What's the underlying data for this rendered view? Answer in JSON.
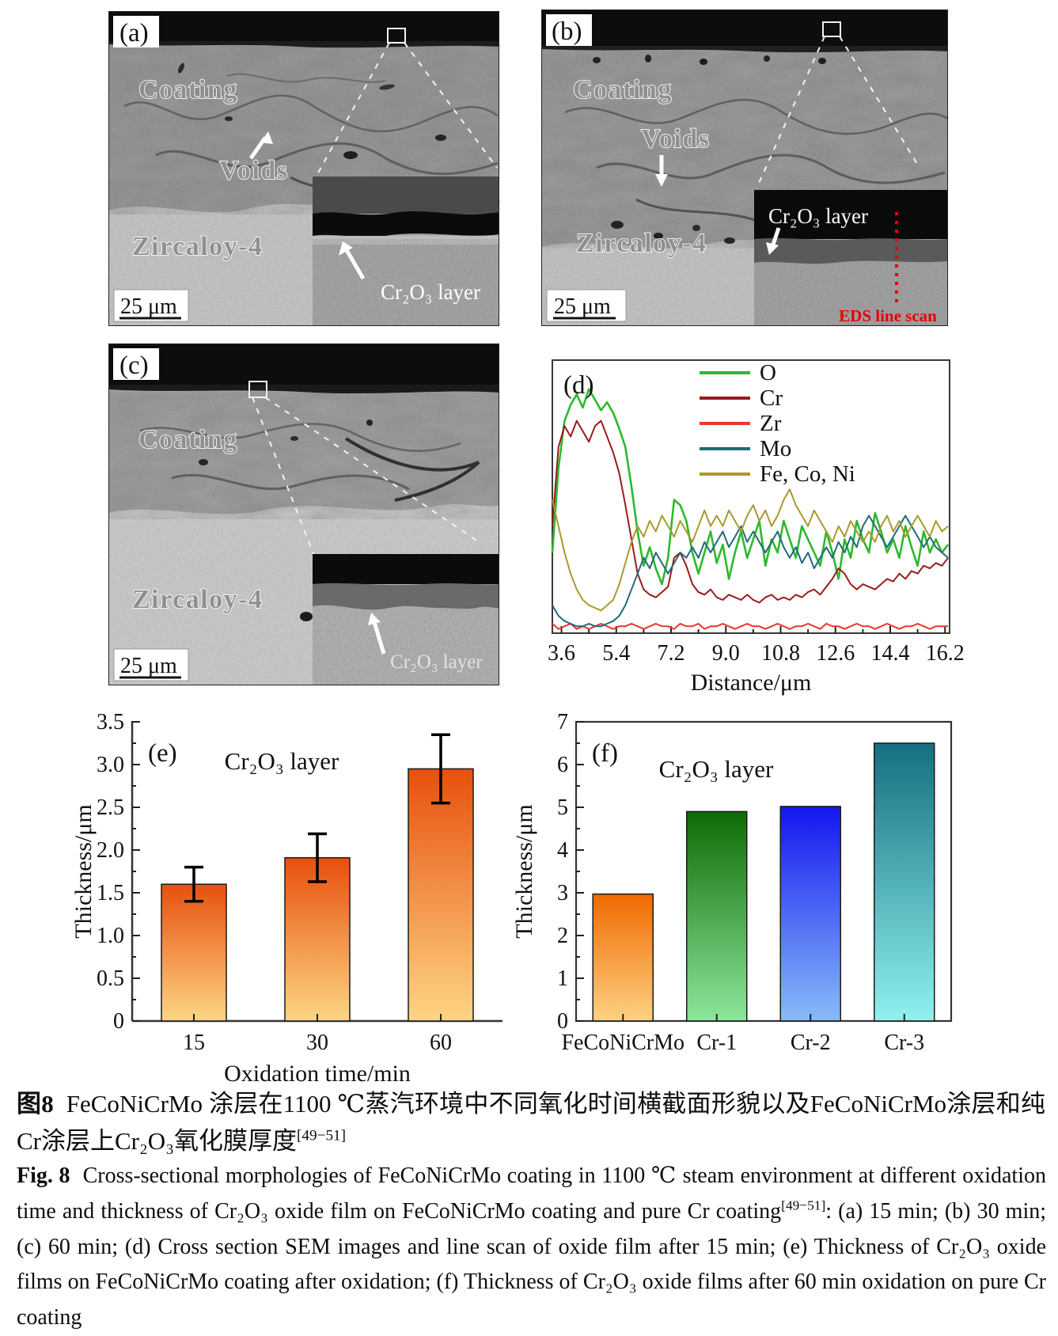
{
  "figure": {
    "panels": {
      "a": {
        "tag": "(a)",
        "coating_label": "Coating",
        "voids_label": "Voids",
        "substrate_label": "Zircaloy-4",
        "scalebar": "25 μm",
        "inset_label": "Cr₂O₃ layer"
      },
      "b": {
        "tag": "(b)",
        "coating_label": "Coating",
        "voids_label": "Voids",
        "substrate_label": "Zircaloy-4",
        "scalebar": "25 μm",
        "inset_label": "Cr₂O₃ layer",
        "eds_label": "EDS line scan"
      },
      "c": {
        "tag": "(c)",
        "coating_label": "Coating",
        "substrate_label": "Zircaloy-4",
        "scalebar": "25 μm",
        "inset_label": "Cr₂O₃ layer"
      }
    },
    "caption_zh": {
      "fig": "图8",
      "text": "FeCoNiCrMo 涂层在1100 ℃蒸汽环境中不同氧化时间横截面形貌以及FeCoNiCrMo涂层和纯Cr涂层上Cr₂O₃氧化膜厚度",
      "ref": "[49−51]"
    },
    "caption_en": {
      "fig": "Fig. 8",
      "part1": "Cross-sectional morphologies of FeCoNiCrMo coating in 1100 ℃ steam environment at different oxidation time and thickness of Cr₂O₃ oxide film on FeCoNiCrMo coating and pure Cr coating",
      "ref": "[49−51]",
      "part2": ": (a) 15 min; (b) 30 min; (c) 60 min; (d) Cross section SEM images and line scan of oxide film after 15 min; (e) Thickness of Cr₂O₃ oxide films on FeCoNiCrMo coating after oxidation; (f) Thickness of Cr₂O₃ oxide films after 60 min oxidation on pure Cr coating"
    }
  },
  "chart_data": [
    {
      "panel": "(d)",
      "type": "line",
      "xlabel": "Distance/μm",
      "ylabel": "",
      "xlim": [
        3.3,
        16.35
      ],
      "x_ticks": [
        "3.6",
        "5.4",
        "7.2",
        "9.0",
        "10.8",
        "12.6",
        "14.4",
        "16.2"
      ],
      "x_start": 3.3,
      "x_step": 0.2,
      "legend_position": "top-center",
      "grid": false,
      "series": [
        {
          "name": "O",
          "color": "#2eb82e",
          "y": [
            30,
            62,
            80,
            86,
            90,
            85,
            92,
            88,
            84,
            87,
            83,
            77,
            70,
            55,
            38,
            25,
            32,
            24,
            18,
            28,
            50,
            48,
            42,
            30,
            22,
            30,
            38,
            26,
            33,
            20,
            30,
            38,
            28,
            35,
            42,
            25,
            35,
            30,
            42,
            35,
            28,
            40,
            35,
            30,
            25,
            38,
            30,
            20,
            35,
            28,
            42,
            35,
            30,
            45,
            38,
            30,
            35,
            28,
            40,
            32,
            25,
            38,
            30,
            35,
            30,
            33
          ]
        },
        {
          "name": "Cr",
          "color": "#9b1b1b",
          "y": [
            40,
            70,
            78,
            74,
            80,
            76,
            72,
            78,
            80,
            74,
            68,
            60,
            48,
            35,
            22,
            16,
            14,
            13,
            15,
            17,
            28,
            30,
            25,
            18,
            15,
            14,
            16,
            13,
            12,
            14,
            13,
            12,
            14,
            12,
            11,
            13,
            14,
            12,
            13,
            12,
            14,
            13,
            15,
            16,
            14,
            17,
            20,
            24,
            22,
            18,
            16,
            18,
            17,
            16,
            18,
            20,
            19,
            22,
            20,
            23,
            22,
            25,
            24,
            26,
            25,
            28
          ]
        },
        {
          "name": "Zr",
          "color": "#e8392b",
          "y": [
            3,
            1,
            2,
            3,
            1,
            2,
            1,
            2,
            3,
            2,
            1,
            2,
            2,
            3,
            2,
            1,
            2,
            3,
            2,
            2,
            1,
            3,
            2,
            2,
            3,
            1,
            2,
            2,
            3,
            2,
            1,
            2,
            3,
            2,
            2,
            1,
            2,
            3,
            2,
            1,
            2,
            2,
            3,
            2,
            1,
            3,
            2,
            2,
            1,
            2,
            3,
            2,
            2,
            1,
            2,
            3,
            2,
            1,
            2,
            2,
            3,
            2,
            1,
            2,
            2,
            2
          ]
        },
        {
          "name": "Mo",
          "color": "#1f6b78",
          "y": [
            10,
            6,
            4,
            3,
            2,
            2,
            3,
            2,
            2,
            3,
            4,
            6,
            10,
            16,
            22,
            28,
            24,
            30,
            26,
            22,
            26,
            30,
            28,
            32,
            28,
            34,
            30,
            34,
            38,
            32,
            36,
            40,
            34,
            38,
            34,
            30,
            34,
            38,
            32,
            28,
            32,
            26,
            30,
            24,
            28,
            32,
            28,
            34,
            30,
            36,
            32,
            40,
            44,
            40,
            36,
            32,
            36,
            40,
            44,
            40,
            36,
            32,
            36,
            32,
            30,
            28
          ]
        },
        {
          "name": "Fe, Co, Ni",
          "color": "#a89a2d",
          "y": [
            50,
            40,
            30,
            22,
            16,
            12,
            10,
            9,
            8,
            10,
            12,
            18,
            26,
            34,
            40,
            36,
            42,
            38,
            44,
            40,
            36,
            42,
            38,
            34,
            40,
            46,
            40,
            44,
            40,
            46,
            42,
            38,
            44,
            48,
            42,
            46,
            40,
            44,
            50,
            54,
            48,
            44,
            40,
            46,
            42,
            38,
            34,
            40,
            36,
            42,
            38,
            34,
            38,
            34,
            40,
            44,
            38,
            42,
            36,
            40,
            44,
            40,
            36,
            42,
            38,
            40
          ]
        }
      ]
    },
    {
      "panel": "(e)",
      "type": "bar",
      "title": "Cr₂O₃ layer",
      "xlabel": "Oxidation time/min",
      "ylabel": "Thickness/μm",
      "ylim": [
        0,
        3.5
      ],
      "ytick_step": 0.5,
      "minor_step": 0.25,
      "categories": [
        "15",
        "30",
        "60"
      ],
      "values": [
        1.6,
        1.91,
        2.95
      ],
      "errors": [
        0.2,
        0.28,
        0.4
      ],
      "bar_gradients": [
        [
          "#e7500d",
          "#fdd584"
        ],
        [
          "#e7500d",
          "#fdd584"
        ],
        [
          "#e7500d",
          "#fdd584"
        ]
      ]
    },
    {
      "panel": "(f)",
      "type": "bar",
      "title": "Cr₂O₃ layer",
      "xlabel": "",
      "ylabel": "Thickness/μm",
      "ylim": [
        0,
        7
      ],
      "ytick_step": 1,
      "minor_step": 0.5,
      "categories": [
        "FeCoNiCrMo",
        "Cr-1",
        "Cr-2",
        "Cr-3"
      ],
      "values": [
        2.97,
        4.9,
        5.02,
        6.5
      ],
      "errors": null,
      "bar_gradients": [
        [
          "#ef6a02",
          "#fed182"
        ],
        [
          "#0d6c05",
          "#8ce69b"
        ],
        [
          "#1316ef",
          "#88bbf8"
        ],
        [
          "#156f80",
          "#90f1ef"
        ]
      ]
    }
  ]
}
